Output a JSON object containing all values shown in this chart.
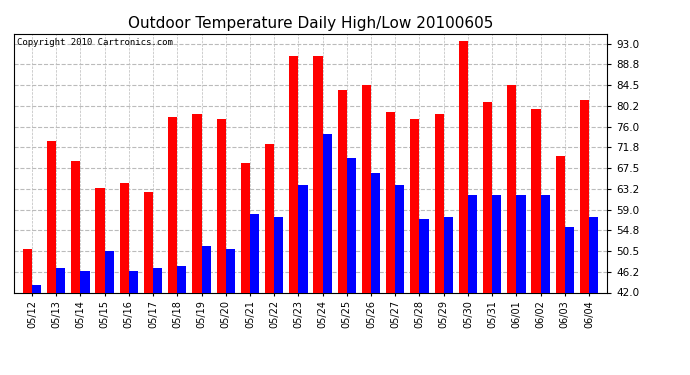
{
  "title": "Outdoor Temperature Daily High/Low 20100605",
  "copyright": "Copyright 2010 Cartronics.com",
  "dates": [
    "05/12",
    "05/13",
    "05/14",
    "05/15",
    "05/16",
    "05/17",
    "05/18",
    "05/19",
    "05/20",
    "05/21",
    "05/22",
    "05/23",
    "05/24",
    "05/25",
    "05/26",
    "05/27",
    "05/28",
    "05/29",
    "05/30",
    "05/31",
    "06/01",
    "06/02",
    "06/03",
    "06/04"
  ],
  "highs": [
    51.0,
    73.0,
    69.0,
    63.5,
    64.5,
    62.5,
    78.0,
    78.5,
    77.5,
    68.5,
    72.5,
    90.5,
    90.5,
    83.5,
    84.5,
    79.0,
    77.5,
    78.5,
    93.5,
    81.0,
    84.5,
    79.5,
    70.0,
    81.5
  ],
  "lows": [
    43.5,
    47.0,
    46.5,
    50.5,
    46.5,
    47.0,
    47.5,
    51.5,
    51.0,
    58.0,
    57.5,
    64.0,
    74.5,
    69.5,
    66.5,
    64.0,
    57.0,
    57.5,
    62.0,
    62.0,
    62.0,
    62.0,
    55.5,
    57.5
  ],
  "ylim": [
    42.0,
    95.0
  ],
  "yticks": [
    42.0,
    46.2,
    50.5,
    54.8,
    59.0,
    63.2,
    67.5,
    71.8,
    76.0,
    80.2,
    84.5,
    88.8,
    93.0
  ],
  "bar_width": 0.38,
  "high_color": "#ff0000",
  "low_color": "#0000ff",
  "bg_color": "#ffffff",
  "grid_color": "#bbbbbb",
  "title_fontsize": 11,
  "copyright_fontsize": 6.5,
  "figwidth": 6.9,
  "figheight": 3.75,
  "dpi": 100
}
